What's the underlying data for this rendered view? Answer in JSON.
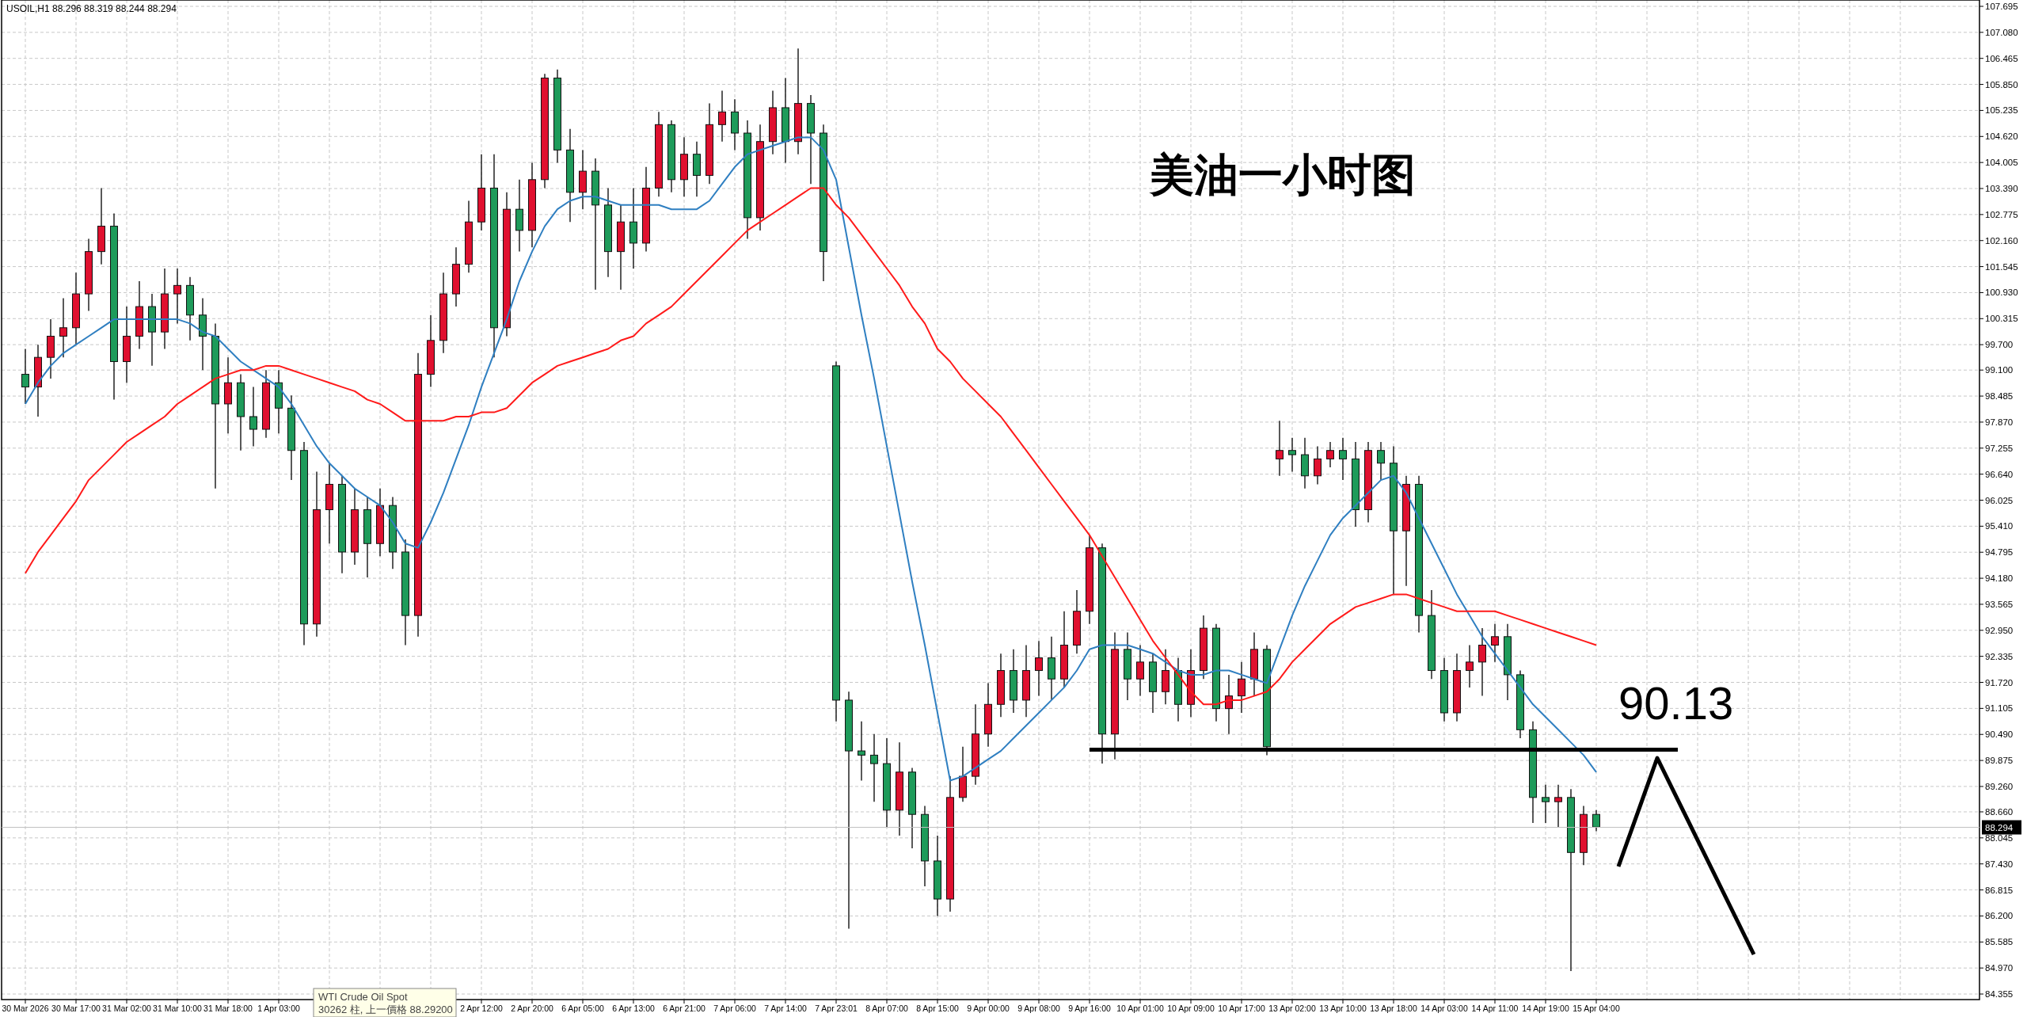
{
  "chart_data": {
    "type": "candlestick",
    "title": "美油一小时图",
    "subtitle": "USOIL,H1 88.296 88.319 88.244 88.294",
    "annotations": [
      "WTI Crude Oil Spot",
      "30262 柱, 上一價格 88.29200"
    ],
    "grid": true,
    "ylim": [
      84.355,
      107.695
    ],
    "yticks": [
      {
        "value": 107.695,
        "label": "107.695"
      },
      {
        "value": 107.08,
        "label": "107.080"
      },
      {
        "value": 106.465,
        "label": "106.465"
      },
      {
        "value": 105.85,
        "label": "105.850"
      },
      {
        "value": 105.235,
        "label": "105.235"
      },
      {
        "value": 104.62,
        "label": "104.620"
      },
      {
        "value": 104.005,
        "label": "104.005"
      },
      {
        "value": 103.39,
        "label": "103.390"
      },
      {
        "value": 102.775,
        "label": "102.775"
      },
      {
        "value": 102.16,
        "label": "102.160"
      },
      {
        "value": 101.545,
        "label": "101.545"
      },
      {
        "value": 100.93,
        "label": "100.930"
      },
      {
        "value": 100.315,
        "label": "100.315"
      },
      {
        "value": 99.7,
        "label": "99.700"
      },
      {
        "value": 99.1,
        "label": "99.100"
      },
      {
        "value": 98.485,
        "label": "98.485"
      },
      {
        "value": 97.87,
        "label": "97.870"
      },
      {
        "value": 97.255,
        "label": "97.255"
      },
      {
        "value": 96.64,
        "label": "96.640"
      },
      {
        "value": 96.025,
        "label": "96.025"
      },
      {
        "value": 95.41,
        "label": "95.410"
      },
      {
        "value": 94.795,
        "label": "94.795"
      },
      {
        "value": 94.18,
        "label": "94.180"
      },
      {
        "value": 93.565,
        "label": "93.565"
      },
      {
        "value": 92.95,
        "label": "92.950"
      },
      {
        "value": 92.335,
        "label": "92.335"
      },
      {
        "value": 91.72,
        "label": "91.720"
      },
      {
        "value": 91.105,
        "label": "91.105"
      },
      {
        "value": 90.49,
        "label": "90.490"
      },
      {
        "value": 89.875,
        "label": "89.875"
      },
      {
        "value": 89.26,
        "label": "89.260"
      },
      {
        "value": 88.66,
        "label": "88.660"
      },
      {
        "value": 88.045,
        "label": "88.045"
      },
      {
        "value": 87.43,
        "label": "87.430"
      },
      {
        "value": 86.815,
        "label": "86.815"
      },
      {
        "value": 86.2,
        "label": "86.200"
      },
      {
        "value": 85.585,
        "label": "85.585"
      },
      {
        "value": 84.97,
        "label": "84.970"
      },
      {
        "value": 84.355,
        "label": "84.355"
      }
    ],
    "categories": [
      "30 Mar 2026",
      null,
      null,
      null,
      "30 Mar 17:00",
      null,
      null,
      null,
      "31 Mar 02:00",
      null,
      null,
      null,
      "31 Mar 10:00",
      null,
      null,
      null,
      "31 Mar 18:00",
      null,
      null,
      null,
      "1 Apr 03:00",
      null,
      null,
      null,
      null,
      null,
      null,
      null,
      null,
      null,
      null,
      null,
      null,
      null,
      null,
      null,
      "2 Apr 12:00",
      null,
      null,
      null,
      "2 Apr 20:00",
      null,
      null,
      null,
      "6 Apr 05:00",
      null,
      null,
      null,
      "6 Apr 13:00",
      null,
      null,
      null,
      "6 Apr 21:00",
      null,
      null,
      null,
      "7 Apr 06:00",
      null,
      null,
      null,
      "7 Apr 14:00",
      null,
      null,
      null,
      "7 Apr 23:01",
      null,
      null,
      null,
      "8 Apr 07:00",
      null,
      null,
      null,
      "8 Apr 15:00",
      null,
      null,
      null,
      "9 Apr 00:00",
      null,
      null,
      null,
      "9 Apr 08:00",
      null,
      null,
      null,
      "9 Apr 16:00",
      null,
      null,
      null,
      "10 Apr 01:00",
      null,
      null,
      null,
      "10 Apr 09:00",
      null,
      null,
      null,
      "10 Apr 17:00",
      null,
      null,
      null,
      "13 Apr 02:00",
      null,
      null,
      null,
      "13 Apr 10:00",
      null,
      null,
      null,
      "13 Apr 18:00",
      null,
      null,
      null,
      "14 Apr 03:00",
      null,
      null,
      null,
      "14 Apr 11:00",
      null,
      null,
      null,
      "14 Apr 19:00",
      null,
      null,
      null,
      "15 Apr 04:00"
    ],
    "ohlc": [
      [
        99.0,
        99.6,
        98.3,
        98.7
      ],
      [
        98.7,
        99.7,
        98.0,
        99.4
      ],
      [
        99.4,
        100.3,
        98.9,
        99.9
      ],
      [
        99.9,
        100.8,
        99.4,
        100.1
      ],
      [
        100.1,
        101.4,
        99.7,
        100.9
      ],
      [
        100.9,
        102.2,
        100.5,
        101.9
      ],
      [
        101.9,
        103.4,
        101.6,
        102.5
      ],
      [
        102.5,
        102.8,
        98.4,
        99.3
      ],
      [
        99.3,
        100.6,
        98.8,
        99.9
      ],
      [
        99.9,
        101.2,
        99.6,
        100.6
      ],
      [
        100.6,
        100.9,
        99.2,
        100.0
      ],
      [
        100.0,
        101.5,
        99.6,
        100.9
      ],
      [
        100.9,
        101.5,
        100.2,
        101.1
      ],
      [
        101.1,
        101.3,
        99.8,
        100.4
      ],
      [
        100.4,
        100.8,
        99.1,
        99.9
      ],
      [
        99.9,
        100.2,
        96.3,
        98.3
      ],
      [
        98.3,
        99.4,
        97.6,
        98.8
      ],
      [
        98.8,
        99.0,
        97.2,
        98.0
      ],
      [
        98.0,
        98.7,
        97.3,
        97.7
      ],
      [
        97.7,
        99.1,
        97.5,
        98.8
      ],
      [
        98.8,
        99.1,
        97.6,
        98.2
      ],
      [
        98.2,
        98.5,
        96.5,
        97.2
      ],
      [
        97.2,
        97.4,
        92.6,
        93.1
      ],
      [
        93.1,
        96.7,
        92.8,
        95.8
      ],
      [
        95.8,
        96.9,
        95.0,
        96.4
      ],
      [
        96.4,
        96.6,
        94.3,
        94.8
      ],
      [
        94.8,
        96.3,
        94.5,
        95.8
      ],
      [
        95.8,
        96.1,
        94.2,
        95.0
      ],
      [
        95.0,
        96.3,
        94.7,
        95.9
      ],
      [
        95.9,
        96.1,
        94.4,
        94.8
      ],
      [
        94.8,
        95.1,
        92.6,
        93.3
      ],
      [
        93.3,
        99.5,
        92.8,
        99.0
      ],
      [
        99.0,
        100.4,
        98.7,
        99.8
      ],
      [
        99.8,
        101.4,
        99.5,
        100.9
      ],
      [
        100.9,
        102.0,
        100.6,
        101.6
      ],
      [
        101.6,
        103.1,
        101.4,
        102.6
      ],
      [
        102.6,
        104.2,
        102.4,
        103.4
      ],
      [
        103.4,
        104.2,
        99.4,
        100.1
      ],
      [
        100.1,
        103.3,
        99.9,
        102.9
      ],
      [
        102.9,
        103.6,
        101.9,
        102.4
      ],
      [
        102.4,
        104.0,
        102.0,
        103.6
      ],
      [
        103.6,
        106.1,
        103.4,
        106.0
      ],
      [
        106.0,
        106.2,
        104.0,
        104.3
      ],
      [
        104.3,
        104.8,
        102.6,
        103.3
      ],
      [
        103.3,
        104.3,
        102.9,
        103.8
      ],
      [
        103.8,
        104.1,
        101.0,
        103.0
      ],
      [
        103.0,
        103.4,
        101.3,
        101.9
      ],
      [
        101.9,
        103.0,
        101.0,
        102.6
      ],
      [
        102.6,
        103.4,
        101.5,
        102.1
      ],
      [
        102.1,
        103.9,
        101.9,
        103.4
      ],
      [
        103.4,
        105.2,
        103.2,
        104.9
      ],
      [
        104.9,
        105.0,
        103.3,
        103.6
      ],
      [
        103.6,
        104.6,
        103.2,
        104.2
      ],
      [
        104.2,
        104.5,
        103.2,
        103.7
      ],
      [
        103.7,
        105.4,
        103.5,
        104.9
      ],
      [
        104.9,
        105.7,
        104.5,
        105.2
      ],
      [
        105.2,
        105.5,
        104.3,
        104.7
      ],
      [
        104.7,
        105.0,
        102.2,
        102.7
      ],
      [
        102.7,
        104.9,
        102.4,
        104.5
      ],
      [
        104.5,
        105.7,
        104.2,
        105.3
      ],
      [
        105.3,
        106.0,
        104.0,
        104.5
      ],
      [
        104.5,
        106.7,
        104.2,
        105.4
      ],
      [
        105.4,
        105.6,
        103.5,
        104.7
      ],
      [
        104.7,
        104.9,
        101.2,
        101.9
      ],
      [
        99.2,
        99.3,
        90.8,
        91.3
      ],
      [
        91.3,
        91.5,
        85.9,
        90.1
      ],
      [
        90.1,
        90.8,
        89.4,
        90.0
      ],
      [
        90.0,
        90.5,
        88.9,
        89.8
      ],
      [
        89.8,
        90.4,
        88.3,
        88.7
      ],
      [
        88.7,
        90.3,
        88.1,
        89.6
      ],
      [
        89.6,
        89.7,
        87.8,
        88.6
      ],
      [
        88.6,
        88.8,
        86.9,
        87.5
      ],
      [
        87.5,
        88.1,
        86.2,
        86.6
      ],
      [
        86.6,
        89.5,
        86.3,
        89.0
      ],
      [
        89.0,
        90.2,
        88.9,
        89.5
      ],
      [
        89.5,
        91.2,
        89.3,
        90.5
      ],
      [
        90.5,
        91.7,
        90.2,
        91.2
      ],
      [
        91.2,
        92.4,
        90.9,
        92.0
      ],
      [
        92.0,
        92.5,
        91.0,
        91.3
      ],
      [
        91.3,
        92.6,
        90.9,
        92.0
      ],
      [
        92.0,
        92.7,
        91.4,
        92.3
      ],
      [
        92.3,
        92.8,
        91.3,
        91.8
      ],
      [
        91.8,
        93.4,
        91.6,
        92.6
      ],
      [
        92.6,
        93.9,
        92.4,
        93.4
      ],
      [
        93.4,
        95.2,
        93.1,
        94.9
      ],
      [
        94.9,
        95.0,
        89.8,
        90.5
      ],
      [
        90.5,
        92.9,
        89.9,
        92.5
      ],
      [
        92.5,
        92.9,
        91.3,
        91.8
      ],
      [
        91.8,
        92.6,
        91.4,
        92.2
      ],
      [
        92.2,
        92.4,
        91.0,
        91.5
      ],
      [
        91.5,
        92.5,
        91.2,
        92.0
      ],
      [
        92.0,
        92.3,
        90.8,
        91.2
      ],
      [
        91.2,
        92.5,
        90.9,
        92.0
      ],
      [
        92.0,
        93.3,
        91.8,
        93.0
      ],
      [
        93.0,
        93.1,
        90.8,
        91.1
      ],
      [
        91.1,
        91.9,
        90.5,
        91.4
      ],
      [
        91.4,
        92.2,
        91.0,
        91.8
      ],
      [
        91.8,
        92.9,
        91.4,
        92.5
      ],
      [
        92.5,
        92.6,
        90.0,
        90.2
      ],
      [
        97.0,
        97.9,
        96.6,
        97.2
      ],
      [
        97.2,
        97.5,
        96.7,
        97.1
      ],
      [
        97.1,
        97.5,
        96.3,
        96.6
      ],
      [
        96.6,
        97.3,
        96.4,
        97.0
      ],
      [
        97.0,
        97.4,
        96.8,
        97.2
      ],
      [
        97.2,
        97.5,
        96.5,
        97.0
      ],
      [
        97.0,
        97.4,
        95.4,
        95.8
      ],
      [
        95.8,
        97.4,
        95.5,
        97.2
      ],
      [
        97.2,
        97.4,
        96.5,
        96.9
      ],
      [
        96.9,
        97.3,
        93.8,
        95.3
      ],
      [
        95.3,
        96.6,
        94.0,
        96.4
      ],
      [
        96.4,
        96.6,
        92.9,
        93.3
      ],
      [
        93.3,
        93.9,
        91.8,
        92.0
      ],
      [
        92.0,
        92.3,
        90.8,
        91.0
      ],
      [
        91.0,
        92.4,
        90.8,
        92.0
      ],
      [
        92.0,
        92.6,
        91.6,
        92.2
      ],
      [
        92.2,
        93.0,
        91.4,
        92.6
      ],
      [
        92.6,
        93.1,
        92.2,
        92.8
      ],
      [
        92.8,
        93.1,
        91.3,
        91.9
      ],
      [
        91.9,
        92.0,
        90.4,
        90.6
      ],
      [
        90.6,
        90.8,
        88.4,
        89.0
      ],
      [
        89.0,
        89.3,
        88.4,
        88.9
      ],
      [
        88.9,
        89.3,
        88.3,
        89.0
      ],
      [
        89.0,
        89.2,
        84.9,
        87.7
      ],
      [
        87.7,
        88.8,
        87.4,
        88.6
      ],
      [
        88.6,
        88.7,
        88.2,
        88.3
      ]
    ],
    "colors": [
      "#1e9b5a",
      "#e0102f",
      "#e0102f",
      "#e0102f",
      "#e0102f",
      "#e0102f",
      "#e0102f",
      "#1e9b5a",
      "#e0102f",
      "#e0102f",
      "#1e9b5a",
      "#e0102f",
      "#e0102f",
      "#1e9b5a",
      "#1e9b5a",
      "#1e9b5a",
      "#e0102f",
      "#1e9b5a",
      "#1e9b5a",
      "#e0102f",
      "#1e9b5a",
      "#1e9b5a",
      "#1e9b5a",
      "#e0102f",
      "#e0102f",
      "#1e9b5a",
      "#e0102f",
      "#1e9b5a",
      "#e0102f",
      "#1e9b5a",
      "#1e9b5a",
      "#e0102f",
      "#e0102f",
      "#e0102f",
      "#e0102f",
      "#e0102f",
      "#e0102f",
      "#1e9b5a",
      "#e0102f",
      "#1e9b5a",
      "#e0102f",
      "#e0102f",
      "#1e9b5a",
      "#1e9b5a",
      "#e0102f",
      "#1e9b5a",
      "#1e9b5a",
      "#e0102f",
      "#1e9b5a",
      "#e0102f",
      "#e0102f",
      "#1e9b5a",
      "#e0102f",
      "#1e9b5a",
      "#e0102f",
      "#e0102f",
      "#1e9b5a",
      "#1e9b5a",
      "#e0102f",
      "#e0102f",
      "#1e9b5a",
      "#e0102f",
      "#1e9b5a",
      "#1e9b5a",
      "#1e9b5a",
      "#1e9b5a",
      "#1e9b5a",
      "#1e9b5a",
      "#1e9b5a",
      "#e0102f",
      "#1e9b5a",
      "#1e9b5a",
      "#1e9b5a",
      "#e0102f",
      "#e0102f",
      "#e0102f",
      "#e0102f",
      "#e0102f",
      "#1e9b5a",
      "#e0102f",
      "#e0102f",
      "#1e9b5a",
      "#e0102f",
      "#e0102f",
      "#e0102f",
      "#1e9b5a",
      "#e0102f",
      "#1e9b5a",
      "#e0102f",
      "#1e9b5a",
      "#e0102f",
      "#1e9b5a",
      "#e0102f",
      "#e0102f",
      "#1e9b5a",
      "#e0102f",
      "#e0102f",
      "#e0102f",
      "#1e9b5a",
      "#e0102f",
      "#1e9b5a",
      "#1e9b5a",
      "#e0102f",
      "#e0102f",
      "#1e9b5a",
      "#1e9b5a",
      "#e0102f",
      "#1e9b5a",
      "#1e9b5a",
      "#e0102f",
      "#1e9b5a",
      "#1e9b5a",
      "#1e9b5a",
      "#e0102f",
      "#e0102f",
      "#e0102f",
      "#e0102f",
      "#1e9b5a",
      "#1e9b5a",
      "#1e9b5a",
      "#1e9b5a",
      "#e0102f",
      "#1e9b5a",
      "#e0102f",
      "#1e9b5a"
    ],
    "series": [
      {
        "type": "line",
        "color": "#2f7fc1",
        "values": [
          98.3,
          98.8,
          99.2,
          99.5,
          99.7,
          99.9,
          100.1,
          100.3,
          100.3,
          100.3,
          100.3,
          100.3,
          100.3,
          100.2,
          100.0,
          99.9,
          99.6,
          99.3,
          99.1,
          98.9,
          98.7,
          98.3,
          97.8,
          97.3,
          96.9,
          96.6,
          96.3,
          96.1,
          95.9,
          95.5,
          95.0,
          94.9,
          95.5,
          96.2,
          97.0,
          97.8,
          98.7,
          99.5,
          100.3,
          101.2,
          101.9,
          102.5,
          102.9,
          103.1,
          103.2,
          103.2,
          103.1,
          103.0,
          103.0,
          103.0,
          103.0,
          102.9,
          102.9,
          102.9,
          103.1,
          103.5,
          103.9,
          104.2,
          104.3,
          104.4,
          104.5,
          104.6,
          104.6,
          104.3,
          103.6,
          102.0,
          100.4,
          98.9,
          97.3,
          95.7,
          94.1,
          92.6,
          91.0,
          89.4,
          89.5,
          89.7,
          89.9,
          90.1,
          90.4,
          90.7,
          91.0,
          91.3,
          91.6,
          92.0,
          92.5,
          92.6,
          92.6,
          92.6,
          92.5,
          92.4,
          92.2,
          92.0,
          91.9,
          91.9,
          92.0,
          92.0,
          91.9,
          91.8,
          91.7,
          92.5,
          93.3,
          94.0,
          94.6,
          95.2,
          95.6,
          95.9,
          96.2,
          96.5,
          96.6,
          96.2,
          95.6,
          95.0,
          94.4,
          93.8,
          93.3,
          92.8,
          92.4,
          92.0,
          91.6,
          91.2,
          90.9,
          90.6,
          90.3,
          90.0,
          89.6
        ]
      },
      {
        "type": "line",
        "color": "#ff1a1a",
        "values": [
          94.3,
          94.8,
          95.2,
          95.6,
          96.0,
          96.5,
          96.8,
          97.1,
          97.4,
          97.6,
          97.8,
          98.0,
          98.3,
          98.5,
          98.7,
          98.9,
          99.0,
          99.1,
          99.1,
          99.2,
          99.2,
          99.1,
          99.0,
          98.9,
          98.8,
          98.7,
          98.6,
          98.4,
          98.3,
          98.1,
          97.9,
          97.9,
          97.9,
          97.9,
          98.0,
          98.0,
          98.1,
          98.1,
          98.2,
          98.5,
          98.8,
          99.0,
          99.2,
          99.3,
          99.4,
          99.5,
          99.6,
          99.8,
          99.9,
          100.2,
          100.4,
          100.6,
          100.9,
          101.2,
          101.5,
          101.8,
          102.1,
          102.4,
          102.6,
          102.8,
          103.0,
          103.2,
          103.4,
          103.4,
          103.0,
          102.7,
          102.3,
          101.9,
          101.5,
          101.1,
          100.6,
          100.2,
          99.6,
          99.3,
          98.9,
          98.6,
          98.3,
          98.0,
          97.6,
          97.2,
          96.8,
          96.4,
          96.0,
          95.6,
          95.2,
          94.7,
          94.2,
          93.7,
          93.2,
          92.7,
          92.3,
          91.9,
          91.5,
          91.2,
          91.2,
          91.3,
          91.3,
          91.4,
          91.5,
          91.8,
          92.2,
          92.5,
          92.8,
          93.1,
          93.3,
          93.5,
          93.6,
          93.7,
          93.8,
          93.8,
          93.7,
          93.6,
          93.5,
          93.4,
          93.4,
          93.4,
          93.4,
          93.3,
          93.2,
          93.1,
          93.0,
          92.9,
          92.8,
          92.7,
          92.6
        ]
      }
    ],
    "ref_lines": [
      {
        "axis": "y",
        "value": 90.13,
        "label": "90.13",
        "color": "#000000"
      },
      {
        "axis": "y",
        "value": 88.294,
        "label": "88.294",
        "color": "#c0c0c0"
      }
    ]
  }
}
